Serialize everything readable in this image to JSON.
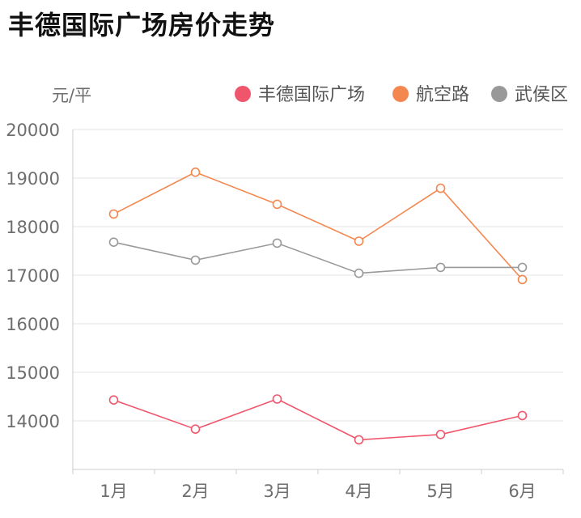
{
  "page": {
    "title": "丰德国际广场房价走势"
  },
  "chart_data": {
    "type": "line",
    "title": "丰德国际广场房价走势",
    "ylabel": "元/平",
    "xlabel": "",
    "categories": [
      "1月",
      "2月",
      "3月",
      "4月",
      "5月",
      "6月"
    ],
    "ylim": [
      13000,
      20000
    ],
    "yticks": [
      14000,
      15000,
      16000,
      17000,
      18000,
      19000,
      20000
    ],
    "grid": true,
    "legend_position": "top-right",
    "series": [
      {
        "name": "丰德国际广场",
        "color": "#f0566b",
        "values": [
          14430,
          13830,
          14450,
          13610,
          13720,
          14110
        ]
      },
      {
        "name": "航空路",
        "color": "#f4874f",
        "values": [
          18260,
          19120,
          18460,
          17700,
          18790,
          16910
        ]
      },
      {
        "name": "武侯区",
        "color": "#999999",
        "values": [
          17680,
          17310,
          17660,
          17040,
          17160,
          17160
        ]
      }
    ]
  }
}
